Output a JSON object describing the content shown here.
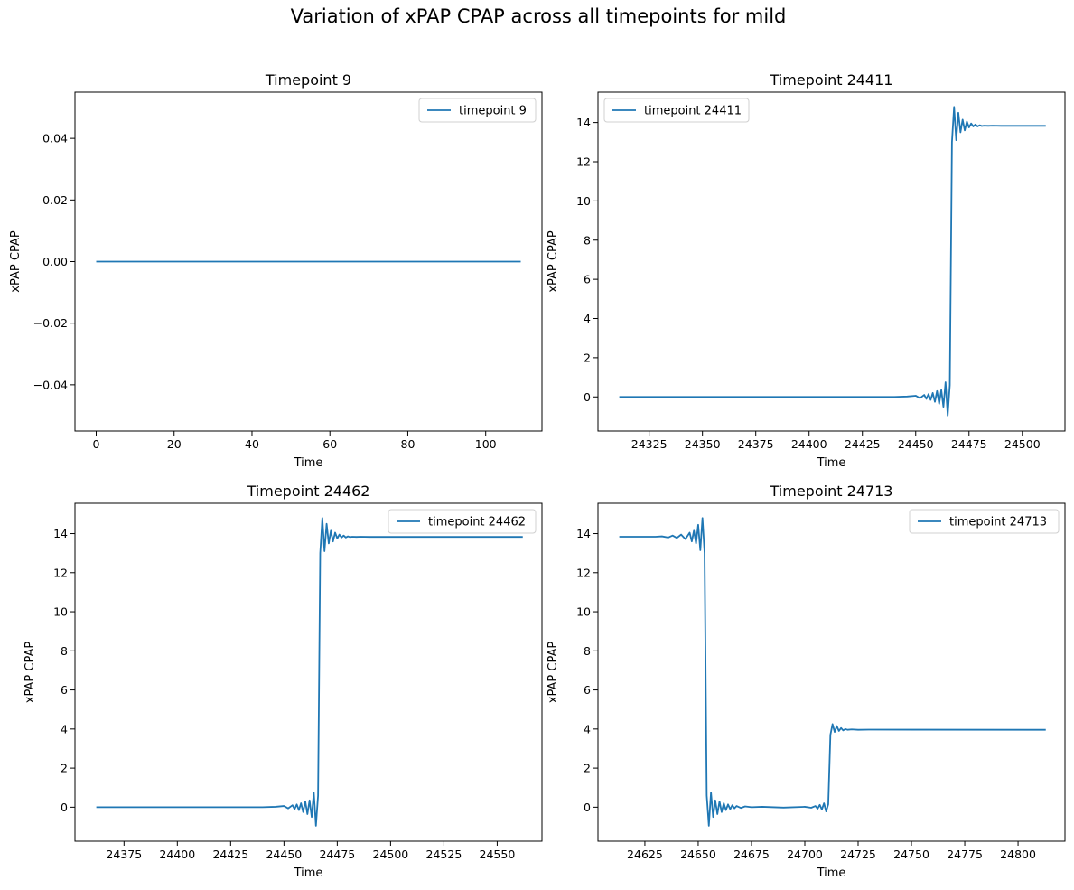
{
  "figure": {
    "suptitle": "Variation of xPAP CPAP across all timepoints for mild"
  },
  "colors": {
    "line": "#1f77b4",
    "axes": "#000000",
    "background": "#ffffff"
  },
  "chart_data": [
    {
      "type": "line",
      "title": "Timepoint 9",
      "xlabel": "Time",
      "ylabel": "xPAP CPAP",
      "xlim": [
        -5.45,
        114.45
      ],
      "ylim": [
        -0.055,
        0.055
      ],
      "xticks": [
        0,
        20,
        40,
        60,
        80,
        100
      ],
      "xtick_labels": [
        "0",
        "20",
        "40",
        "60",
        "80",
        "100"
      ],
      "yticks": [
        -0.04,
        -0.02,
        0.0,
        0.02,
        0.04
      ],
      "ytick_labels": [
        "−0.04",
        "−0.02",
        "0.00",
        "0.02",
        "0.04"
      ],
      "legend_position": "upper-right",
      "grid": false,
      "series": [
        {
          "name": "timepoint 9",
          "x": [
            0,
            109
          ],
          "y": [
            0,
            0
          ]
        }
      ]
    },
    {
      "type": "line",
      "title": "Timepoint 24411",
      "xlabel": "Time",
      "ylabel": "xPAP CPAP",
      "xlim": [
        24301,
        24520
      ],
      "ylim": [
        -1.74,
        15.55
      ],
      "xticks": [
        24325,
        24350,
        24375,
        24400,
        24425,
        24450,
        24475,
        24500
      ],
      "xtick_labels": [
        "24325",
        "24350",
        "24375",
        "24400",
        "24425",
        "24450",
        "24475",
        "24500"
      ],
      "yticks": [
        0,
        2,
        4,
        6,
        8,
        10,
        12,
        14
      ],
      "ytick_labels": [
        "0",
        "2",
        "4",
        "6",
        "8",
        "10",
        "12",
        "14"
      ],
      "legend_position": "upper-left",
      "grid": false,
      "series": [
        {
          "name": "timepoint 24411",
          "x": [
            24311,
            24440,
            24446,
            24450,
            24452,
            24454,
            24455,
            24456,
            24457,
            24458,
            24459,
            24460,
            24461,
            24462,
            24463,
            24464,
            24465,
            24466,
            24467,
            24468,
            24469,
            24470,
            24471,
            24472,
            24473,
            24474,
            24475,
            24476,
            24477,
            24478,
            24479,
            24480,
            24481,
            24482,
            24484,
            24486,
            24490,
            24511
          ],
          "y": [
            0,
            0,
            0.02,
            0.06,
            -0.06,
            0.1,
            -0.1,
            0.14,
            -0.15,
            0.2,
            -0.25,
            0.3,
            -0.35,
            0.35,
            -0.5,
            0.75,
            -0.95,
            0.6,
            13.0,
            14.8,
            13.1,
            14.5,
            13.5,
            14.15,
            13.6,
            14.05,
            13.75,
            13.95,
            13.8,
            13.9,
            13.8,
            13.86,
            13.82,
            13.84,
            13.83,
            13.84,
            13.83,
            13.83
          ]
        }
      ]
    },
    {
      "type": "line",
      "title": "Timepoint 24462",
      "xlabel": "Time",
      "ylabel": "xPAP CPAP",
      "xlim": [
        24352,
        24571
      ],
      "ylim": [
        -1.74,
        15.55
      ],
      "xticks": [
        24375,
        24400,
        24425,
        24450,
        24475,
        24500,
        24525,
        24550
      ],
      "xtick_labels": [
        "24375",
        "24400",
        "24425",
        "24450",
        "24475",
        "24500",
        "24525",
        "24550"
      ],
      "yticks": [
        0,
        2,
        4,
        6,
        8,
        10,
        12,
        14
      ],
      "ytick_labels": [
        "0",
        "2",
        "4",
        "6",
        "8",
        "10",
        "12",
        "14"
      ],
      "legend_position": "upper-right",
      "grid": false,
      "series": [
        {
          "name": "timepoint 24462",
          "x": [
            24362,
            24440,
            24446,
            24450,
            24452,
            24454,
            24455,
            24456,
            24457,
            24458,
            24459,
            24460,
            24461,
            24462,
            24463,
            24464,
            24465,
            24466,
            24467,
            24468,
            24469,
            24470,
            24471,
            24472,
            24473,
            24474,
            24475,
            24476,
            24477,
            24478,
            24479,
            24480,
            24481,
            24482,
            24484,
            24486,
            24490,
            24562
          ],
          "y": [
            0,
            0,
            0.02,
            0.06,
            -0.06,
            0.1,
            -0.1,
            0.14,
            -0.15,
            0.2,
            -0.25,
            0.3,
            -0.35,
            0.35,
            -0.5,
            0.75,
            -0.95,
            0.6,
            13.0,
            14.8,
            13.1,
            14.5,
            13.5,
            14.15,
            13.6,
            14.05,
            13.75,
            13.95,
            13.8,
            13.9,
            13.8,
            13.86,
            13.82,
            13.84,
            13.83,
            13.84,
            13.83,
            13.83
          ]
        }
      ]
    },
    {
      "type": "line",
      "title": "Timepoint 24713",
      "xlabel": "Time",
      "ylabel": "xPAP CPAP",
      "xlim": [
        24603,
        24822
      ],
      "ylim": [
        -1.74,
        15.55
      ],
      "xticks": [
        24625,
        24650,
        24675,
        24700,
        24725,
        24750,
        24775,
        24800
      ],
      "xtick_labels": [
        "24625",
        "24650",
        "24675",
        "24700",
        "24725",
        "24750",
        "24775",
        "24800"
      ],
      "yticks": [
        0,
        2,
        4,
        6,
        8,
        10,
        12,
        14
      ],
      "ytick_labels": [
        "0",
        "2",
        "4",
        "6",
        "8",
        "10",
        "12",
        "14"
      ],
      "legend_position": "upper-right",
      "grid": false,
      "series": [
        {
          "name": "timepoint 24713",
          "x": [
            24613,
            24630,
            24633,
            24636,
            24638,
            24640,
            24642,
            24644,
            24646,
            24647,
            24648,
            24649,
            24650,
            24651,
            24652,
            24653,
            24654,
            24655,
            24656,
            24657,
            24658,
            24659,
            24660,
            24661,
            24662,
            24663,
            24664,
            24665,
            24666,
            24667,
            24668,
            24670,
            24672,
            24675,
            24680,
            24690,
            24700,
            24703,
            24705,
            24706,
            24707,
            24708,
            24709,
            24710,
            24711,
            24712,
            24713,
            24714,
            24715,
            24716,
            24717,
            24718,
            24719,
            24720,
            24722,
            24725,
            24730,
            24813
          ],
          "y": [
            13.84,
            13.84,
            13.86,
            13.8,
            13.9,
            13.78,
            13.95,
            13.72,
            14.05,
            13.6,
            14.15,
            13.5,
            14.45,
            13.15,
            14.8,
            13.0,
            0.6,
            -0.95,
            0.75,
            -0.5,
            0.35,
            -0.35,
            0.3,
            -0.25,
            0.2,
            -0.15,
            0.14,
            -0.1,
            0.1,
            -0.06,
            0.06,
            -0.04,
            0.04,
            0.0,
            0.02,
            -0.02,
            0.02,
            -0.03,
            0.06,
            -0.08,
            0.12,
            -0.12,
            0.2,
            -0.22,
            0.15,
            3.7,
            4.25,
            3.85,
            4.15,
            3.9,
            4.05,
            3.93,
            4.0,
            3.96,
            3.98,
            3.96,
            3.97,
            3.96
          ]
        }
      ]
    }
  ]
}
